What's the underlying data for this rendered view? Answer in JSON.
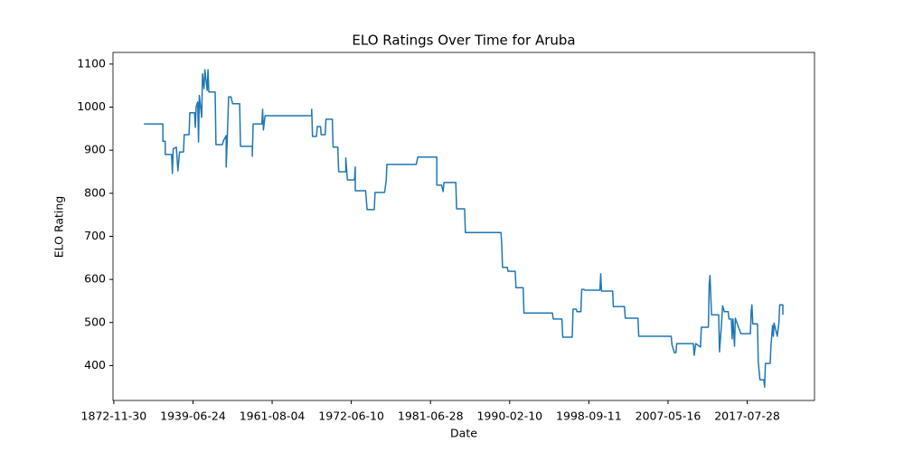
{
  "chart_data": {
    "type": "line",
    "title": "ELO Ratings Over Time for Aruba",
    "x_label": "Date",
    "y_label": "ELO Rating",
    "x": [
      38,
      62,
      62,
      65,
      65,
      73,
      74,
      75,
      79,
      81,
      83,
      88,
      89,
      95,
      96,
      102,
      103,
      104,
      106,
      107,
      108,
      111,
      112,
      114,
      115,
      118,
      119,
      120,
      128,
      129,
      137,
      139,
      142,
      142,
      143,
      145,
      148,
      150,
      159,
      160,
      175,
      175,
      176,
      187,
      188,
      189,
      191,
      250,
      250,
      251,
      256,
      257,
      261,
      262,
      267,
      268,
      276,
      277,
      283,
      284,
      293,
      293,
      295,
      304,
      305,
      305,
      318,
      320,
      329,
      330,
      342,
      344,
      345,
      382,
      384,
      408,
      408,
      414,
      416,
      417,
      432,
      433,
      443,
      444,
      489,
      490,
      491,
      497,
      498,
      507,
      508,
      517,
      518,
      554,
      555,
      566,
      567,
      579,
      580,
      584,
      585,
      590,
      591,
      594,
      595,
      614,
      615,
      616,
      630,
      631,
      645,
      646,
      662,
      663,
      704,
      705,
      708,
      710,
      711,
      712,
      732,
      733,
      735,
      741,
      742,
      751,
      752,
      753,
      755,
      764,
      765,
      767,
      769,
      771,
      776,
      777,
      780,
      781,
      782,
      784,
      785,
      792,
      793,
      804,
      805,
      806,
      807,
      813,
      814,
      816,
      821,
      822,
      823,
      829,
      830,
      832,
      833,
      834,
      838,
      840,
      841,
      845,
      845
    ],
    "series": [
      {
        "name": "ELO Rating",
        "color": "#1f77b4",
        "values": [
          961,
          961,
          921,
          921,
          890,
          890,
          846,
          903,
          907,
          852,
          896,
          896,
          936,
          936,
          987,
          987,
          953,
          1001,
          1012,
          919,
          1027,
          976,
          1077,
          1043,
          1087,
          1039,
          1087,
          1035,
          1035,
          913,
          913,
          924,
          934,
          861,
          909,
          1024,
          1024,
          1008,
          1008,
          909,
          909,
          886,
          961,
          961,
          995,
          947,
          980,
          980,
          995,
          932,
          932,
          955,
          955,
          936,
          936,
          972,
          972,
          907,
          907,
          850,
          850,
          882,
          831,
          831,
          861,
          806,
          806,
          762,
          762,
          802,
          802,
          829,
          867,
          867,
          884,
          884,
          819,
          819,
          804,
          825,
          825,
          764,
          764,
          709,
          709,
          682,
          628,
          628,
          619,
          619,
          581,
          581,
          522,
          522,
          508,
          508,
          466,
          466,
          531,
          531,
          525,
          525,
          577,
          577,
          575,
          575,
          613,
          573,
          573,
          537,
          537,
          510,
          510,
          468,
          468,
          449,
          430,
          430,
          451,
          451,
          451,
          424,
          451,
          443,
          489,
          489,
          588,
          609,
          518,
          518,
          432,
          483,
          539,
          525,
          525,
          508,
          508,
          462,
          508,
          445,
          510,
          474,
          474,
          474,
          525,
          541,
          497,
          497,
          409,
          367,
          367,
          350,
          405,
          405,
          445,
          493,
          468,
          499,
          468,
          499,
          541,
          541,
          518
        ]
      }
    ],
    "xlim": [
      -1,
      885
    ],
    "ylim": [
      319,
      1127
    ],
    "xticks": [
      {
        "value": 0,
        "label": "1872-11-30"
      },
      {
        "value": 100,
        "label": "1939-06-24"
      },
      {
        "value": 200,
        "label": "1961-08-04"
      },
      {
        "value": 300,
        "label": "1972-06-10"
      },
      {
        "value": 400,
        "label": "1981-06-28"
      },
      {
        "value": 500,
        "label": "1990-02-10"
      },
      {
        "value": 600,
        "label": "1998-09-11"
      },
      {
        "value": 700,
        "label": "2007-05-16"
      },
      {
        "value": 800,
        "label": "2017-07-28"
      }
    ],
    "yticks": [
      400,
      500,
      600,
      700,
      800,
      900,
      1000,
      1100
    ]
  }
}
